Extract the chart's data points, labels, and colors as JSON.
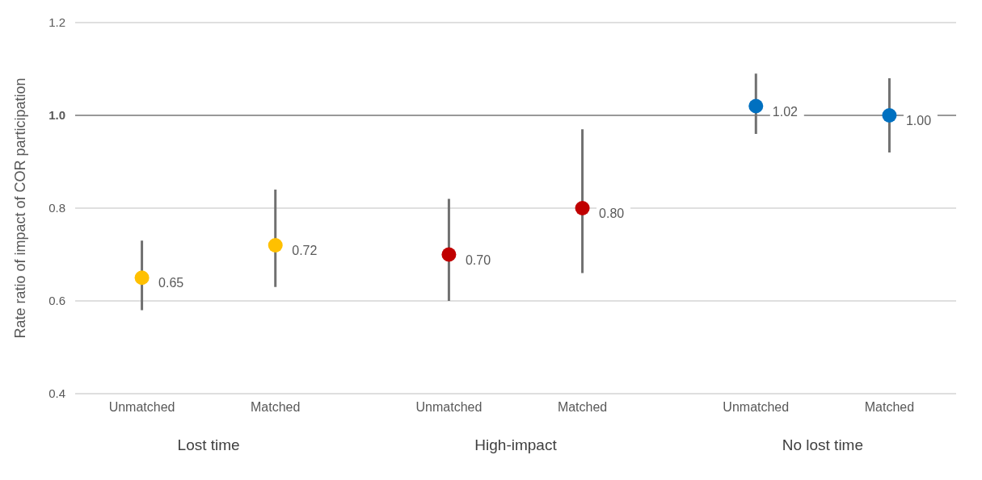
{
  "chart_data": {
    "type": "scatter",
    "ylabel": "Rate ratio of impact of COR participation",
    "categories": [
      "Unmatched",
      "Matched",
      "Unmatched",
      "Matched",
      "Unmatched",
      "Matched"
    ],
    "values": [
      0.65,
      0.72,
      0.7,
      0.8,
      1.02,
      1.0
    ],
    "value_labels": [
      "0.65",
      "0.72",
      "0.70",
      "0.80",
      "1.02",
      "1.00"
    ],
    "errors": [
      [
        0.58,
        0.73
      ],
      [
        0.63,
        0.84
      ],
      [
        0.6,
        0.82
      ],
      [
        0.66,
        0.97
      ],
      [
        0.96,
        1.09
      ],
      [
        0.92,
        1.08
      ]
    ],
    "colors": [
      "#ffc000",
      "#ffc000",
      "#c00000",
      "#c00000",
      "#0070c0",
      "#0070c0"
    ],
    "annotations": [
      "Lost time",
      "High-impact",
      "No lost time"
    ],
    "ylim": [
      0.4,
      1.2
    ],
    "yticks": [
      {
        "value": 0.4,
        "label": "0.4"
      },
      {
        "value": 0.6,
        "label": "0.6"
      },
      {
        "value": 0.8,
        "label": "0.8"
      },
      {
        "value": 1.0,
        "label": "1.0"
      },
      {
        "value": 1.2,
        "label": "1.2"
      }
    ],
    "ref_lines": [
      {
        "axis": "y",
        "value": 1.0,
        "color": "#808080"
      }
    ],
    "grid": "y",
    "marker": "circle"
  }
}
